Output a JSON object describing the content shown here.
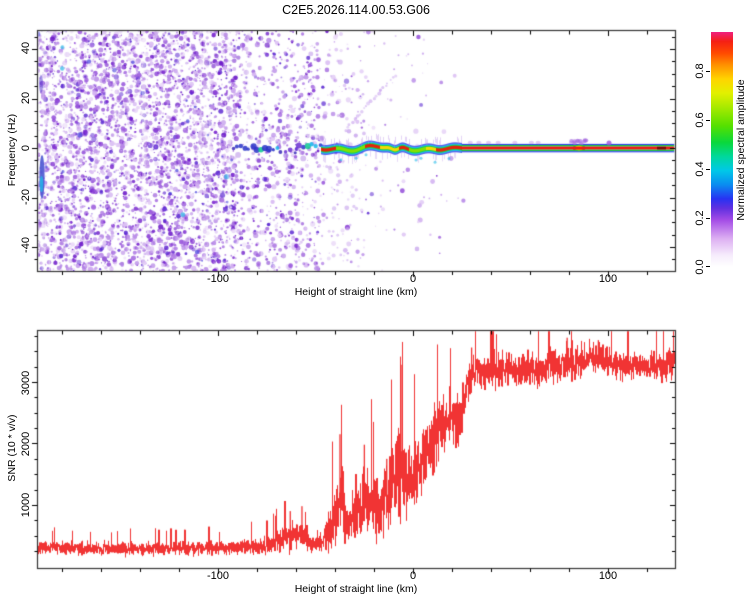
{
  "labels": {
    "title": "C2E5.2026.114.00.53.G06",
    "x_axis": "Height of straight line (km)",
    "spec_y_axis": "Frequency (Hz)",
    "snr_y_axis": "SNR (10 * v/v)",
    "colorbar": "Normalized spectral amplitude"
  },
  "ticks": {
    "spec_x": [
      "-100",
      "0",
      "100"
    ],
    "spec_y": [
      "40",
      "20",
      "0",
      "-20",
      "-40"
    ],
    "snr_x": [
      "-100",
      "0",
      "100"
    ],
    "snr_y": [
      "3000",
      "2000",
      "1000"
    ],
    "cbar": [
      "0.8",
      "0.6",
      "0.4",
      "0.2",
      "0.0"
    ]
  },
  "colors": {
    "snr_line": "#f13434",
    "frame": "#000000",
    "background": "#ffffff",
    "ridge_core": "#f01808",
    "noise_speckle": "#8a3fd6"
  },
  "chart_data": [
    {
      "type": "heatmap",
      "title": "C2E5.2026.114.00.53.G06",
      "xlabel": "Height of straight line (km)",
      "ylabel": "Frequency (Hz)",
      "xlim": [
        -193,
        134
      ],
      "ylim": [
        -49.7,
        47.7
      ],
      "x_major_ticks": [
        -100,
        0,
        100
      ],
      "x_minor_step": 20,
      "y_major_ticks": [
        -40,
        -20,
        0,
        20,
        40
      ],
      "y_minor_step": 5,
      "grid": false,
      "colorbar": {
        "label": "Normalized spectral amplitude",
        "ticks": [
          0.0,
          0.2,
          0.4,
          0.6,
          0.8
        ],
        "range": [
          0.0,
          0.96
        ]
      },
      "description": "Broadband violet speckle noise (amplitude ~0.05-0.3) fills all frequencies left of -90 km, thins out until ~-45 km, nearly white beyond; a narrow spectral ridge near 0 Hz appears at ~-90 km as intermittent blue/cyan blobs, becomes a continuous wobbly green/yellow/red line from -45 to +25 km, then a flat thin red-cored line (amplitude ~0.9) at 0 Hz out to +134 km; faint diagonal streak rising above the ridge near -35..-10 km; purple fuzz bumps above the line near +60..+95 km",
      "noise_bands": [
        {
          "from_km": -193,
          "to_km": -91,
          "density": 1.0
        },
        {
          "from_km": -91,
          "to_km": -48,
          "density": 0.45
        },
        {
          "from_km": -48,
          "to_km": -25,
          "density": 0.16
        },
        {
          "from_km": -25,
          "to_km": 8,
          "density": 0.05
        },
        {
          "from_km": 8,
          "to_km": 30,
          "density": 0.015
        }
      ],
      "signal_ridge": {
        "freq_hz": 0,
        "segments": [
          {
            "from_km": -92,
            "to_km": -47,
            "style": "intermittent-blue",
            "amplitude": 0.3
          },
          {
            "from_km": -47,
            "to_km": 25,
            "style": "wobbly-multicolor",
            "amplitude": 0.85
          },
          {
            "from_km": 25,
            "to_km": 134,
            "style": "flat-red",
            "amplitude": 0.9
          }
        ]
      }
    },
    {
      "type": "line",
      "series_name": "SNR",
      "xlabel": "Height of straight line (km)",
      "ylabel": "SNR (10 * v/v)",
      "xlim": [
        -193,
        134
      ],
      "ylim": [
        -25,
        3845
      ],
      "x_major_ticks": [
        -100,
        0,
        100
      ],
      "x_minor_step": 20,
      "y_major_ticks": [
        1000,
        2000,
        3000
      ],
      "y_minor_step": 250,
      "grid": false,
      "color": "#f13434",
      "profile_km_mean_noise": [
        [
          -193,
          300,
          140
        ],
        [
          -170,
          295,
          145
        ],
        [
          -150,
          290,
          140
        ],
        [
          -130,
          300,
          150
        ],
        [
          -110,
          300,
          150
        ],
        [
          -90,
          310,
          160
        ],
        [
          -75,
          330,
          190
        ],
        [
          -66,
          470,
          300
        ],
        [
          -58,
          540,
          330
        ],
        [
          -52,
          340,
          170
        ],
        [
          -47,
          420,
          260
        ],
        [
          -41,
          750,
          580
        ],
        [
          -37,
          1150,
          880
        ],
        [
          -34,
          680,
          470
        ],
        [
          -30,
          870,
          660
        ],
        [
          -26,
          1060,
          800
        ],
        [
          -22,
          1010,
          760
        ],
        [
          -18,
          960,
          700
        ],
        [
          -14,
          1120,
          850
        ],
        [
          -10,
          1260,
          900
        ],
        [
          -7,
          1600,
          1050
        ],
        [
          -4,
          1320,
          820
        ],
        [
          0,
          1500,
          800
        ],
        [
          4,
          1700,
          760
        ],
        [
          8,
          1900,
          750
        ],
        [
          12,
          2100,
          700
        ],
        [
          16,
          2300,
          650
        ],
        [
          20,
          2420,
          600
        ],
        [
          23,
          2320,
          640
        ],
        [
          25,
          2620,
          500
        ],
        [
          27,
          2920,
          440
        ],
        [
          29,
          3100,
          380
        ],
        [
          32,
          3190,
          360
        ],
        [
          40,
          3180,
          360
        ],
        [
          50,
          3220,
          350
        ],
        [
          60,
          3200,
          360
        ],
        [
          70,
          3250,
          380
        ],
        [
          79,
          3340,
          400
        ],
        [
          85,
          3300,
          380
        ],
        [
          90,
          3390,
          360
        ],
        [
          95,
          3370,
          380
        ],
        [
          100,
          3300,
          360
        ],
        [
          110,
          3280,
          340
        ],
        [
          120,
          3260,
          350
        ],
        [
          128,
          3300,
          340
        ],
        [
          134,
          3280,
          320
        ]
      ],
      "spikes_km_value": [
        [
          -63,
          900
        ],
        [
          -57,
          980
        ],
        [
          -37.5,
          2150
        ],
        [
          -25,
          1980
        ],
        [
          -13.5,
          1750
        ],
        [
          -6.2,
          3280
        ],
        [
          30,
          3560
        ],
        [
          79,
          3720
        ],
        [
          95,
          3680
        ]
      ]
    }
  ]
}
